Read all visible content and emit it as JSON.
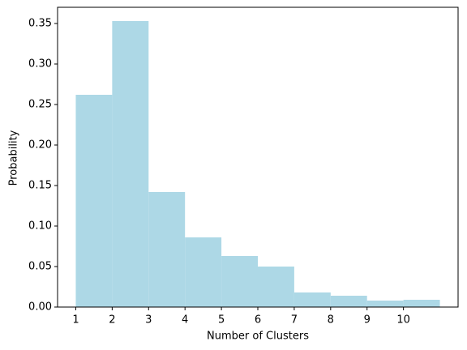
{
  "chart_data": {
    "type": "histogram",
    "xlabel": "Number of Clusters",
    "ylabel": "Probability",
    "bins": [
      1,
      2,
      3,
      4,
      5,
      6,
      7,
      8,
      9,
      10,
      11
    ],
    "values": [
      0.262,
      0.353,
      0.142,
      0.086,
      0.063,
      0.05,
      0.018,
      0.014,
      0.008,
      0.009
    ],
    "color": "#add8e6",
    "xlim": [
      0.5,
      11.5
    ],
    "xticks": [
      1,
      2,
      3,
      4,
      5,
      6,
      7,
      8,
      9,
      10
    ],
    "ylim": [
      0,
      0.37
    ],
    "yticks": [
      {
        "value": 0,
        "label": "0.00"
      },
      0.05,
      {
        "value": 0.1,
        "label": "0.10"
      },
      0.15,
      {
        "value": 0.2,
        "label": "0.20"
      },
      0.25,
      {
        "value": 0.3,
        "label": "0.30"
      },
      0.35
    ]
  }
}
